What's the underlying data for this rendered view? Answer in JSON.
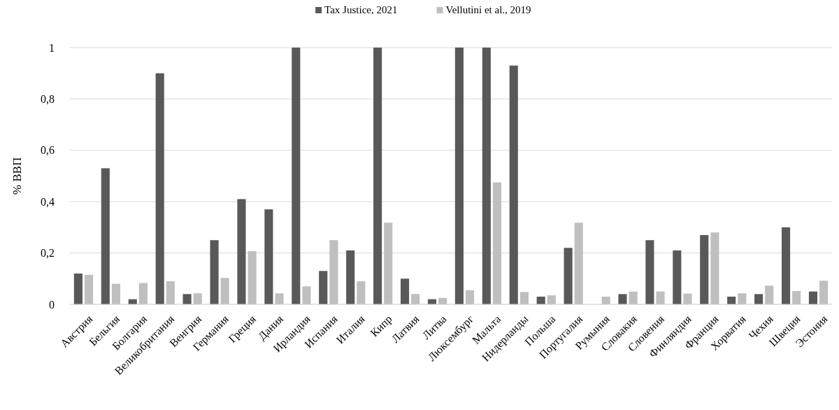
{
  "chart_data": {
    "type": "bar",
    "ylabel": "% ВВП",
    "legend": "top",
    "grid": "y",
    "ylim": [
      0,
      1
    ],
    "yticks": [
      0,
      {
        "value": 0.2,
        "label": "0,2"
      },
      {
        "value": 0.4,
        "label": "0,4"
      },
      {
        "value": 0.6,
        "label": "0,6"
      },
      {
        "value": 0.8,
        "label": "0,8"
      },
      1
    ],
    "categories": [
      "Австрия",
      "Бельгия",
      "Болгария",
      "Великобритания",
      "Венгрия",
      "Германия",
      "Греция",
      "Дания",
      "Ирландия",
      "Испания",
      "Италия",
      "Кипр",
      "Латвия",
      "Литва",
      "Люксембург",
      "Мальта",
      "Нидерланды",
      "Польша",
      "Португалия",
      "Румыния",
      "Словакия",
      "Словения",
      "Финляндия",
      "Франция",
      "Хорватия",
      "Чехия",
      "Швеция",
      "Эстония"
    ],
    "series": [
      {
        "name": "Tax Justice, 2021",
        "color": "#595959",
        "values": [
          0.12,
          0.53,
          0.02,
          0.9,
          0.04,
          0.25,
          0.41,
          0.37,
          1,
          0.13,
          0.21,
          1,
          0.1,
          0.02,
          1,
          1,
          0.93,
          0.03,
          0.22,
          null,
          0.04,
          0.25,
          0.21,
          0.27,
          0.03,
          0.04,
          0.3,
          0.05
        ]
      },
      {
        "name": "Vellutini et al., 2019",
        "color": "#bfbfbf",
        "values": [
          0.115,
          0.08,
          0.083,
          0.09,
          0.043,
          0.103,
          0.207,
          0.043,
          0.07,
          0.25,
          0.09,
          0.318,
          0.04,
          0.025,
          0.055,
          0.475,
          0.048,
          0.035,
          0.318,
          0.03,
          0.05,
          0.05,
          0.042,
          0.28,
          0.043,
          0.073,
          0.052,
          0.092
        ]
      }
    ]
  }
}
